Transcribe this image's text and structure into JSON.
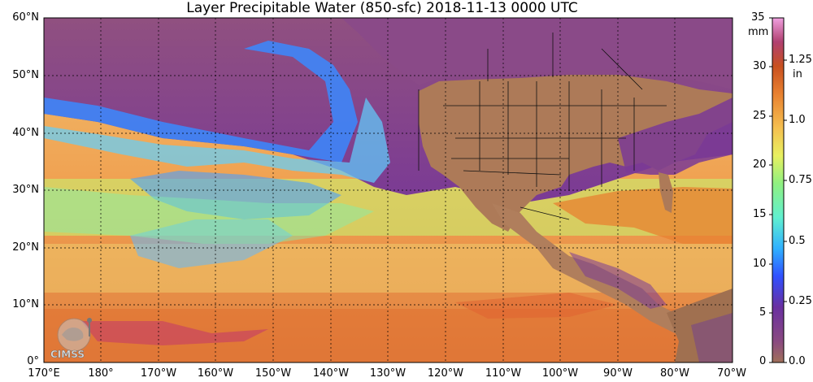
{
  "title": "Layer Precipitable Water (850-sfc)  2018-11-13 0000 UTC",
  "latitude_labels": [
    "60°N",
    "50°N",
    "40°N",
    "30°N",
    "20°N",
    "10°N",
    "0°"
  ],
  "longitude_labels": [
    "170°E",
    "180°",
    "170°W",
    "160°W",
    "150°W",
    "140°W",
    "130°W",
    "120°W",
    "110°W",
    "100°W",
    "90°W",
    "80°W",
    "70°W"
  ],
  "colorbar": {
    "mm_unit": "mm",
    "in_unit": "in",
    "mm_ticks": [
      "35",
      "30",
      "25",
      "20",
      "15",
      "10",
      "5",
      "0"
    ],
    "in_ticks": [
      "1.25",
      "1.0",
      "0.75",
      "0.5",
      "0.25",
      "0.0"
    ],
    "colors": [
      "#a0705a",
      "#7a3a8a",
      "#5a2f9a",
      "#4060ff",
      "#40c0ff",
      "#70f0c0",
      "#b0f070",
      "#f0e060",
      "#f0a040",
      "#e07020",
      "#c04020",
      "#d050a0",
      "#f0a0e0"
    ]
  },
  "logo_text": "CIMSS"
}
